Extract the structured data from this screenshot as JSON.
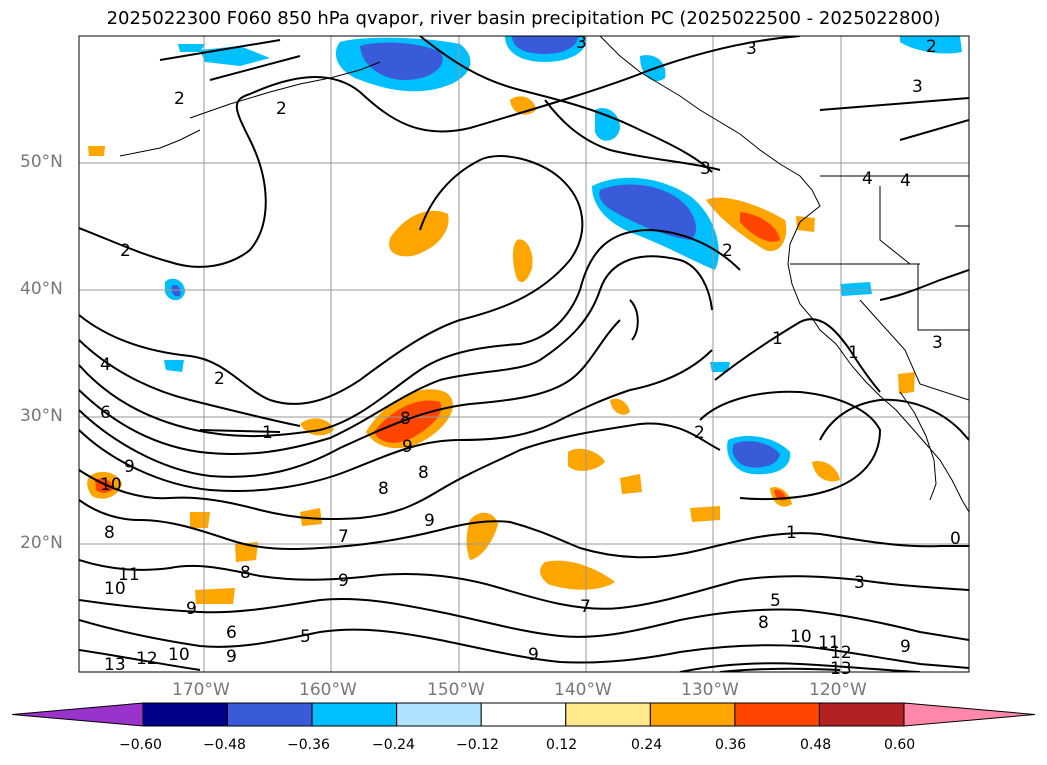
{
  "title": "2025022300 F060 850 hPa qvapor, river basin precipitation PC (2025022500 - 2025022800)",
  "lat_labels": [
    "50°N",
    "40°N",
    "30°N",
    "20°N"
  ],
  "lon_labels": [
    "170°W",
    "160°W",
    "150°W",
    "140°W",
    "130°W",
    "120°W"
  ],
  "colorbar": {
    "tick_labels": [
      "−0.60",
      "−0.48",
      "−0.36",
      "−0.24",
      "−0.12",
      "0.12",
      "0.24",
      "0.36",
      "0.48",
      "0.60"
    ],
    "colors": [
      "#9933cc",
      "#00008b",
      "#3a5bd9",
      "#00bfff",
      "#b0e2ff",
      "#ffffff",
      "#ffe98a",
      "#ffa500",
      "#ff4500",
      "#b22222",
      "#ff88aa"
    ]
  },
  "contour_labels": [
    "3",
    "3",
    "3",
    "2",
    "3",
    "2",
    "2",
    "2",
    "3",
    "4",
    "4",
    "2",
    "1",
    "2",
    "4",
    "6",
    "1",
    "9",
    "8",
    "9",
    "8",
    "8",
    "9",
    "2",
    "1",
    "10",
    "8",
    "7",
    "9",
    "8",
    "11",
    "10",
    "9",
    "6",
    "5",
    "10",
    "12",
    "13",
    "9",
    "9",
    "7",
    "3",
    "5",
    "8",
    "10",
    "11",
    "12",
    "13",
    "9",
    "0",
    "1"
  ],
  "colors_key": {
    "contour": "#000000",
    "grid": "#999999",
    "coast": "#000000"
  }
}
